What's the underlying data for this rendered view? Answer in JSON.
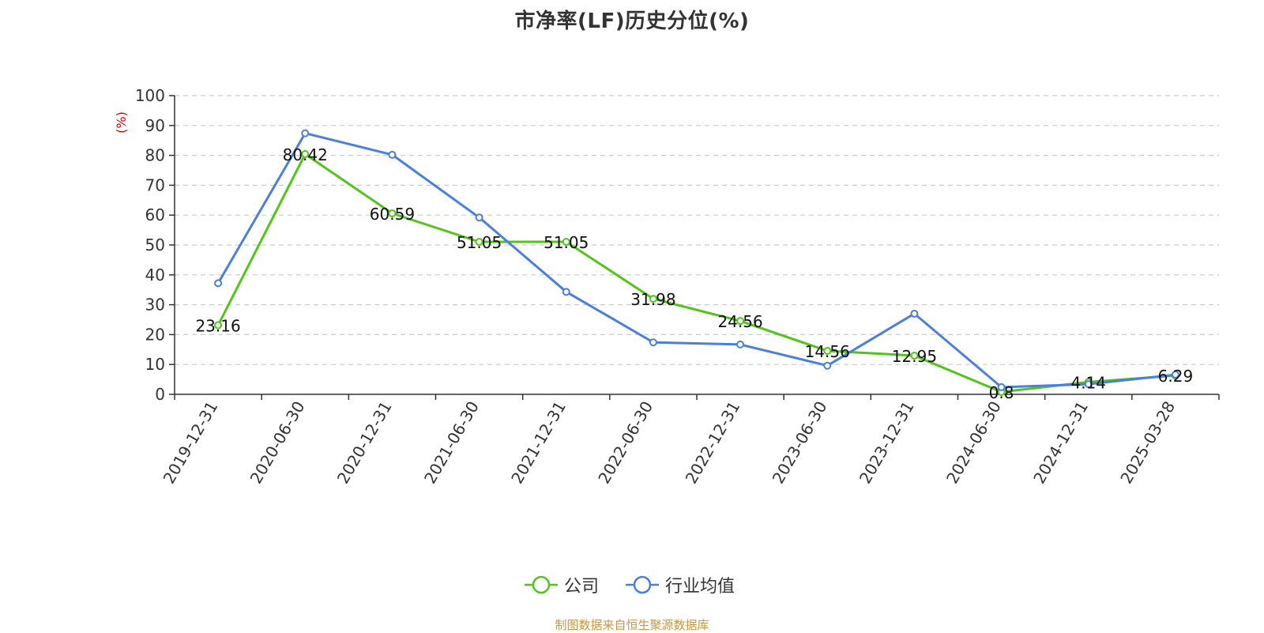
{
  "source_note": "制图数据来自恒生聚源数据库",
  "chart_data": {
    "type": "line",
    "title": "市净率(LF)历史分位(%)",
    "ylabel": "(%)",
    "xlabel": "",
    "ylim": [
      0,
      100
    ],
    "y_ticks": [
      "0",
      "10",
      "20",
      "30",
      "40",
      "50",
      "60",
      "70",
      "80",
      "90",
      "100"
    ],
    "grid": true,
    "legend_position": "bottom-center",
    "categories": [
      "2019-12-31",
      "2020-06-30",
      "2020-12-31",
      "2021-06-30",
      "2021-12-31",
      "2022-06-30",
      "2022-12-31",
      "2023-06-30",
      "2023-12-31",
      "2024-06-30",
      "2024-12-31",
      "2025-03-28"
    ],
    "series": [
      {
        "name": "公司",
        "color": "#52c41a",
        "values": [
          23.16,
          80.42,
          60.59,
          51.05,
          51.05,
          31.98,
          24.56,
          14.56,
          12.95,
          0.8,
          4.14,
          6.29
        ],
        "labels": [
          "23.16",
          "80.42",
          "60.59",
          "51.05",
          "51.05",
          "31.98",
          "24.56",
          "14.56",
          "12.95",
          "0.8",
          "4.14",
          "6.29"
        ]
      },
      {
        "name": "行业均值",
        "color": "#4a7fdb",
        "values": [
          37.2,
          87.4,
          80.2,
          59.2,
          34.3,
          17.4,
          16.7,
          9.6,
          27.0,
          2.4,
          3.4,
          6.6
        ]
      }
    ]
  }
}
